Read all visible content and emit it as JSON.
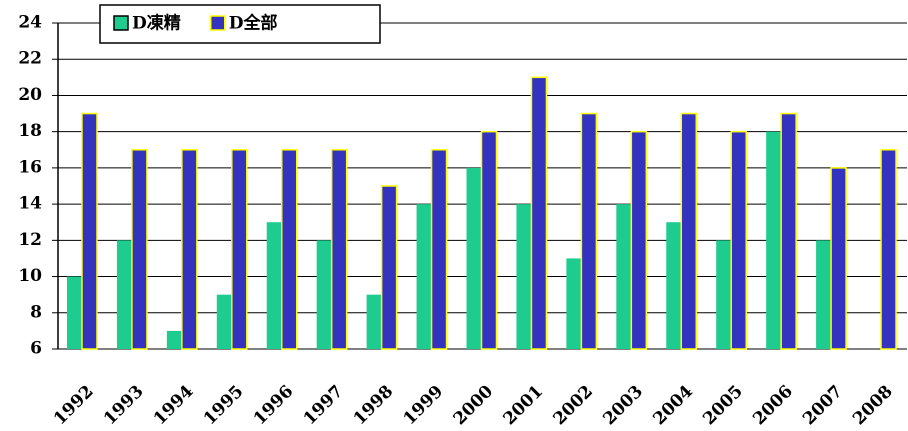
{
  "chart_data": {
    "type": "bar",
    "categories": [
      "1992",
      "1993",
      "1994",
      "1995",
      "1996",
      "1997",
      "1998",
      "1999",
      "2000",
      "2001",
      "2002",
      "2003",
      "2004",
      "2005",
      "2006",
      "2007",
      "2008"
    ],
    "series": [
      {
        "name": "D凍精",
        "color": "#1fcc90",
        "values": [
          10,
          12,
          7,
          9,
          13,
          12,
          9,
          14,
          16,
          14,
          11,
          14,
          13,
          12,
          18,
          12,
          null
        ]
      },
      {
        "name": "D全部",
        "color": "#3333c0",
        "edge": "#ffff00",
        "values": [
          19,
          17,
          17,
          17,
          17,
          17,
          15,
          17,
          18,
          21,
          19,
          18,
          19,
          18,
          19,
          16,
          17
        ]
      }
    ],
    "ylim": [
      6,
      24
    ],
    "yticks": [
      6,
      8,
      10,
      12,
      14,
      16,
      18,
      20,
      22,
      24
    ],
    "grid": true,
    "legend": "upper left"
  }
}
